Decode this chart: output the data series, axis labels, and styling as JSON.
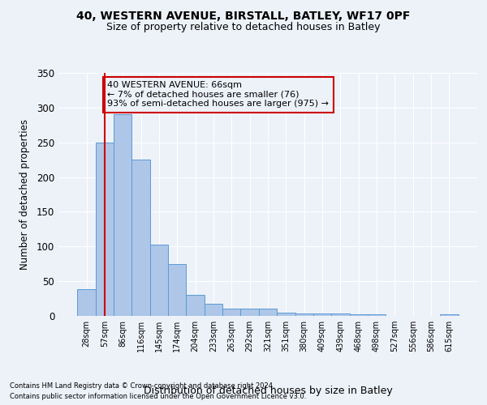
{
  "title1": "40, WESTERN AVENUE, BIRSTALL, BATLEY, WF17 0PF",
  "title2": "Size of property relative to detached houses in Batley",
  "xlabel": "Distribution of detached houses by size in Batley",
  "ylabel": "Number of detached properties",
  "bar_labels": [
    "28sqm",
    "57sqm",
    "86sqm",
    "116sqm",
    "145sqm",
    "174sqm",
    "204sqm",
    "233sqm",
    "263sqm",
    "292sqm",
    "321sqm",
    "351sqm",
    "380sqm",
    "409sqm",
    "439sqm",
    "468sqm",
    "498sqm",
    "527sqm",
    "556sqm",
    "586sqm",
    "615sqm"
  ],
  "bar_values": [
    38,
    250,
    290,
    225,
    103,
    75,
    30,
    18,
    10,
    10,
    11,
    5,
    4,
    3,
    3,
    2,
    2,
    0,
    0,
    0,
    2
  ],
  "bar_color": "#aec6e8",
  "bar_edgecolor": "#5b9bd5",
  "vline_x": 1.0,
  "vline_color": "#cc0000",
  "annotation_text": "40 WESTERN AVENUE: 66sqm\n← 7% of detached houses are smaller (76)\n93% of semi-detached houses are larger (975) →",
  "annotation_box_edgecolor": "#cc0000",
  "ylim": [
    0,
    350
  ],
  "yticks": [
    0,
    50,
    100,
    150,
    200,
    250,
    300,
    350
  ],
  "footer1": "Contains HM Land Registry data © Crown copyright and database right 2024.",
  "footer2": "Contains public sector information licensed under the Open Government Licence v3.0.",
  "bg_color": "#edf2f9",
  "grid_color": "#ffffff"
}
